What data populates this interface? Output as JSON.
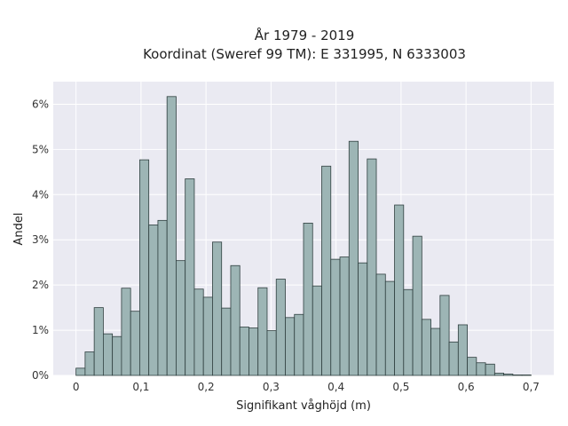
{
  "chart_data": {
    "type": "bar",
    "title_lines": [
      "År 1979 - 2019",
      "Koordinat (Sweref 99 TM): E 331995, N 6333003"
    ],
    "xlabel": "Signifikant våghöjd (m)",
    "ylabel": "Andel",
    "xlim": [
      -0.035,
      0.735
    ],
    "ylim": [
      0,
      6.5
    ],
    "x_ticks": [
      0,
      0.1,
      0.2,
      0.3,
      0.4,
      0.5,
      0.6,
      0.7
    ],
    "x_tick_labels": [
      "0",
      "0,1",
      "0,2",
      "0,3",
      "0,4",
      "0,5",
      "0,6",
      "0,7"
    ],
    "y_ticks": [
      0,
      1,
      2,
      3,
      4,
      5,
      6
    ],
    "y_tick_labels": [
      "0%",
      "1%",
      "2%",
      "3%",
      "4%",
      "5%",
      "6%"
    ],
    "grid": true,
    "bin_width": 0.014,
    "bin_starts": [
      0.0,
      0.014,
      0.028,
      0.042,
      0.056,
      0.07,
      0.084,
      0.098,
      0.112,
      0.126,
      0.14,
      0.154,
      0.168,
      0.182,
      0.196,
      0.21,
      0.224,
      0.238,
      0.252,
      0.266,
      0.28,
      0.294,
      0.308,
      0.322,
      0.336,
      0.35,
      0.364,
      0.378,
      0.392,
      0.406,
      0.42,
      0.434,
      0.448,
      0.462,
      0.476,
      0.49,
      0.504,
      0.518,
      0.532,
      0.546,
      0.56,
      0.574,
      0.588,
      0.602,
      0.616,
      0.63,
      0.644,
      0.658,
      0.672,
      0.686
    ],
    "values": [
      0.16,
      0.52,
      1.5,
      0.92,
      0.86,
      1.93,
      1.42,
      4.77,
      3.33,
      3.43,
      6.17,
      2.54,
      4.35,
      1.91,
      1.73,
      2.95,
      1.49,
      2.43,
      1.07,
      1.05,
      1.94,
      0.99,
      2.13,
      1.28,
      1.35,
      3.37,
      1.98,
      4.63,
      2.57,
      2.62,
      5.18,
      2.49,
      4.79,
      2.24,
      2.08,
      3.77,
      1.9,
      3.08,
      1.24,
      1.04,
      1.77,
      0.74,
      1.12,
      0.4,
      0.28,
      0.25,
      0.05,
      0.03,
      0.01,
      0.01
    ],
    "bar_color": "#9db5b5",
    "bar_edge_color": "#2f3f3f",
    "plot_background": "#eaeaf2",
    "grid_color": "#ffffff"
  }
}
